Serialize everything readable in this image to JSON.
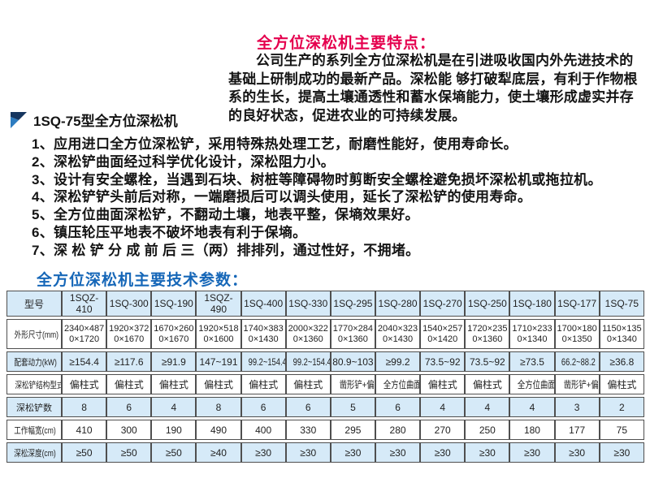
{
  "header": {
    "features_title": "全方位深松机主要特点：",
    "intro": "公司生产的系列全方位深松机是在引进吸收国内外先进技术的基础上研制成功的最新产品。深松能 够打破犁底层，有利于作物根系的生长，提高土壤通透性和蓄水保墒能力，使土壤形成虚实并存的良好状态，促进农业的可持续发展。",
    "product_heading": "1SQ-75型全方位深松机"
  },
  "features": {
    "items": [
      "1、应用进口全方位深松铲，采用特殊热处理工艺，耐磨性能好，使用寿命长。",
      "2、深松铲曲面经过科学优化设计，深松阻力小。",
      "3、设计有安全螺栓，当遇到石块、树桩等障碍物时剪断安全螺栓避免损坏深松机或拖拉机。",
      "4、深松铲铲头前后对称，一端磨损后可以调头使用，延长了深松铲的使用寿命。",
      "5、全方位曲面深松铲，不翻动土壤，地表平整，保墒效果好。",
      "6、镇压轮压平地表不破坏地表有利于保墒。",
      "7、深 松 铲 分 成 前 后 三（两）排排列，通过性好，不拥堵。"
    ]
  },
  "table": {
    "title": "全方位深松机主要技术参数：",
    "columns": [
      "型号",
      "1SQZ-410",
      "1SQ-300",
      "1SQ-190",
      "1SQZ-490",
      "1SQ-400",
      "1SQ-330",
      "1SQ-295",
      "1SQ-280",
      "1SQ-270",
      "1SQ-250",
      "1SQ-180",
      "1SQ-177",
      "1SQ-75"
    ],
    "rows": [
      {
        "label": "外形尺寸(mm)",
        "values": [
          "2340×4870×1720",
          "1920×3720×1670",
          "1670×2600×1670",
          "1920×5180×1600",
          "1740×3830×1430",
          "2000×3220×1360",
          "1770×2840×1360",
          "2040×3230×1430",
          "1540×2570×1420",
          "1720×2350×1360",
          "1710×2330×1340",
          "1700×1800×1350",
          "1150×1350×1340"
        ]
      },
      {
        "label": "配套动力(kW)",
        "values": [
          "≥154.4",
          "≥117.6",
          "≥91.9",
          "147~191",
          "99.2~154.4",
          "99.2~154.4",
          "80.9~103",
          "≥99.2",
          "73.5~92",
          "73.5~92",
          "≥73.5",
          "66.2~88.2",
          "≥36.8"
        ]
      },
      {
        "label": "深松铲结构型式",
        "values": [
          "偏柱式",
          "偏柱式",
          "偏柱式",
          "偏柱式",
          "偏柱式",
          "偏柱式",
          "凿形铲+偏柱式",
          "全方位曲面铲",
          "偏柱式",
          "偏柱式",
          "全方位曲面铲",
          "凿形铲+偏柱式",
          "偏柱式"
        ]
      },
      {
        "label": "深松铲数",
        "values": [
          "8",
          "6",
          "4",
          "8",
          "6",
          "6",
          "5",
          "6",
          "4",
          "4",
          "4",
          "3",
          "2"
        ]
      },
      {
        "label": "工作幅宽(cm)",
        "values": [
          "410",
          "300",
          "190",
          "490",
          "400",
          "330",
          "295",
          "280",
          "270",
          "250",
          "180",
          "177",
          "75"
        ]
      },
      {
        "label": "深松深度(cm)",
        "values": [
          "≥50",
          "≥50",
          "≥50",
          "≥40",
          "≥30",
          "≥30",
          "≥30",
          "≥30",
          "≥30",
          "≥30",
          "≥30",
          "≥30",
          "≥30"
        ]
      }
    ]
  },
  "colors": {
    "title_red": "#e5004e",
    "title_blue": "#1667b8",
    "table_alt_blue": "#d6eaf8",
    "logo_dark": "#16365f",
    "logo_light": "#2d7cc0"
  }
}
